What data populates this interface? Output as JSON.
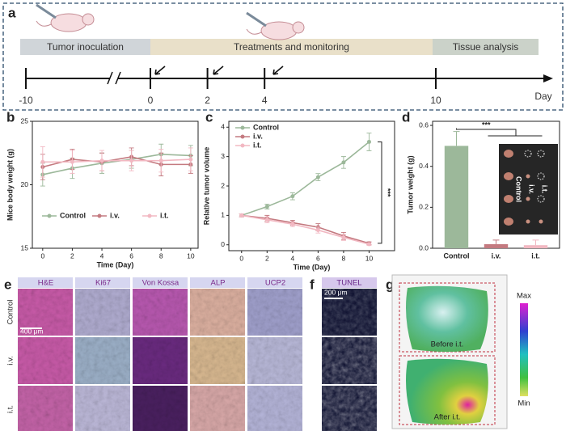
{
  "timeline": {
    "label": "a",
    "phases": [
      "Tumor inoculation",
      "Treatments and monitoring",
      "Tissue analysis"
    ],
    "ticks": [
      -10,
      0,
      2,
      4,
      10
    ],
    "unit": "Day"
  },
  "chart_data": [
    {
      "panel_label": "b",
      "type": "line",
      "x_label": "Time (Day)",
      "y_label": "Mice body weight (g)",
      "x": [
        0,
        2,
        4,
        6,
        8,
        10
      ],
      "xlim": [
        -0.7,
        10.5
      ],
      "xticks": [
        0,
        2,
        4,
        6,
        8,
        10
      ],
      "ylim": [
        15,
        25
      ],
      "yticks": [
        15,
        20,
        25
      ],
      "legend": "bottom",
      "series": [
        {
          "name": "Control",
          "color": "#9cb89a",
          "values": [
            20.8,
            21.3,
            21.7,
            22.0,
            22.4,
            22.3
          ],
          "errors": [
            0.9,
            0.8,
            0.8,
            0.7,
            0.8,
            0.8
          ]
        },
        {
          "name": "i.v.",
          "color": "#c47a80",
          "values": [
            21.4,
            22.0,
            21.8,
            22.2,
            21.6,
            21.6
          ],
          "errors": [
            1.0,
            0.8,
            0.7,
            0.7,
            0.9,
            0.7
          ]
        },
        {
          "name": "i.t.",
          "color": "#f2b8c2",
          "values": [
            21.8,
            21.8,
            21.9,
            21.9,
            21.9,
            22.0
          ],
          "errors": [
            1.2,
            0.9,
            0.8,
            0.8,
            0.9,
            0.9
          ]
        }
      ]
    },
    {
      "panel_label": "c",
      "type": "line",
      "x_label": "Time (Day)",
      "y_label": "Relative tumor volume",
      "x": [
        0,
        2,
        4,
        6,
        8,
        10
      ],
      "xlim": [
        -1,
        12
      ],
      "xticks": [
        0,
        2,
        4,
        6,
        8,
        10
      ],
      "ylim": [
        -0.2,
        4.2
      ],
      "yticks": [
        0,
        1,
        2,
        3,
        4
      ],
      "legend": "top-left",
      "annotation": "***",
      "series": [
        {
          "name": "Control",
          "color": "#9cb89a",
          "values": [
            1.0,
            1.3,
            1.65,
            2.3,
            2.8,
            3.5
          ],
          "errors": [
            0.05,
            0.08,
            0.12,
            0.12,
            0.2,
            0.3
          ]
        },
        {
          "name": "i.v.",
          "color": "#c47a80",
          "values": [
            1.0,
            0.9,
            0.75,
            0.6,
            0.3,
            0.05
          ],
          "errors": [
            0.05,
            0.1,
            0.08,
            0.12,
            0.12,
            0.05
          ]
        },
        {
          "name": "i.t.",
          "color": "#f2b8c2",
          "values": [
            1.0,
            0.85,
            0.7,
            0.5,
            0.25,
            0.02
          ],
          "errors": [
            0.05,
            0.1,
            0.08,
            0.1,
            0.1,
            0.04
          ]
        }
      ]
    },
    {
      "panel_label": "d",
      "type": "bar",
      "y_label": "Tumor weight (g)",
      "categories": [
        "Control",
        "i.v.",
        "i.t."
      ],
      "values": [
        0.5,
        0.02,
        0.015
      ],
      "errors": [
        0.07,
        0.02,
        0.025
      ],
      "colors": [
        "#9cb89a",
        "#c47a80",
        "#f2b8c2"
      ],
      "ylim": [
        0,
        0.62
      ],
      "yticks": [
        {
          "value": 0,
          "label": "0.0"
        },
        0.2,
        0.4,
        0.6
      ],
      "annotation": "***",
      "inset_labels": [
        "Control",
        "i.v.",
        "i.t."
      ]
    }
  ],
  "histology": {
    "label": "e",
    "stains": [
      "H&E",
      "Ki67",
      "Von Kossa",
      "ALP",
      "UCP2"
    ],
    "groups": [
      "Control",
      "i.v.",
      "i.t."
    ],
    "scale_bar": "400 μm"
  },
  "tunel": {
    "label": "f",
    "stain": "TUNEL",
    "scale_bar": "200 μm"
  },
  "imaging": {
    "label": "g",
    "images": [
      "Before i.t.",
      "After i.t."
    ],
    "colorbar": [
      "Max",
      "Min"
    ]
  }
}
